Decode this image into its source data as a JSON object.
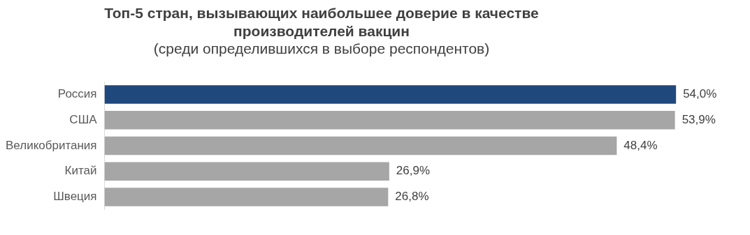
{
  "chart_data": {
    "type": "bar",
    "orientation": "horizontal",
    "title": "Топ-5 стран, вызывающих наибольшее доверие в качестве производителей вакцин",
    "subtitle": "(среди определившихся в выборе респондентов)",
    "categories": [
      "Россия",
      "США",
      "Великобритания",
      "Китай",
      "Швеция"
    ],
    "values": [
      54.0,
      53.9,
      48.4,
      26.9,
      26.8
    ],
    "colors": [
      "#1f497d",
      "#a6a6a6",
      "#a6a6a6",
      "#a6a6a6",
      "#a6a6a6"
    ],
    "value_labels": [
      "54,0%",
      "53,9%",
      "48,4%",
      "26,9%",
      "26,8%"
    ]
  }
}
